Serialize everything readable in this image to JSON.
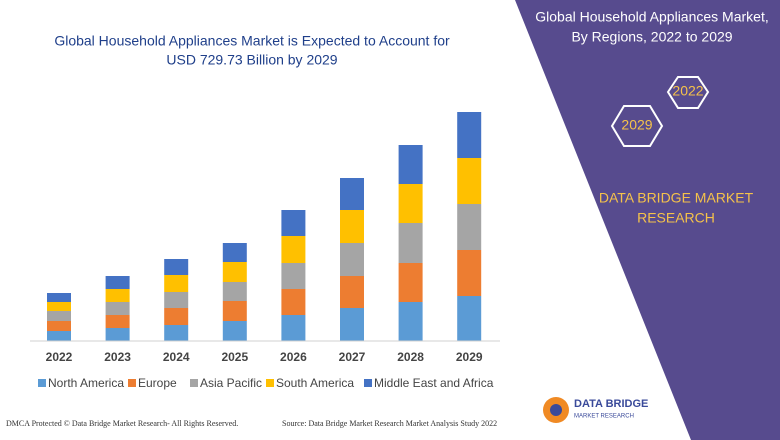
{
  "header": {
    "title_lines": [
      "Global Household Appliances Market is Expected to Account for",
      "USD 729.73 Billion by 2029"
    ]
  },
  "panel": {
    "title_lines": [
      "Global Household Appliances Market,",
      "By Regions, 2022 to 2029"
    ],
    "hex_years": [
      "2022",
      "2029"
    ],
    "brand_lines": [
      "DATA BRIDGE MARKET",
      "RESEARCH"
    ]
  },
  "chart_data": {
    "type": "stacked_bar",
    "categories": [
      "2022",
      "2023",
      "2024",
      "2025",
      "2026",
      "2027",
      "2028",
      "2029"
    ],
    "series": [
      {
        "name": "North America",
        "color": "#5b9bd5",
        "values": [
          10,
          13,
          16,
          20,
          26,
          33,
          39,
          45
        ]
      },
      {
        "name": "Europe",
        "color": "#ed7d31",
        "values": [
          10,
          13,
          17,
          20,
          26,
          32,
          39,
          46
        ]
      },
      {
        "name": "Asia Pacific",
        "color": "#a5a5a5",
        "values": [
          10,
          13,
          16,
          19,
          26,
          33,
          40,
          46
        ]
      },
      {
        "name": "South America",
        "color": "#ffc000",
        "values": [
          9,
          13,
          17,
          20,
          27,
          33,
          39,
          46
        ]
      },
      {
        "name": "Middle East and Africa",
        "color": "#4472c4",
        "values": [
          9,
          13,
          16,
          19,
          26,
          32,
          39,
          46
        ]
      }
    ],
    "ylim": [
      0,
      229
    ]
  },
  "footer": {
    "left": "DMCA Protected © Data Bridge Market Research- All Rights Reserved.",
    "right": "Source: Data Bridge Market Research Market Analysis Study 2022",
    "logo_lines": [
      "DATA BRIDGE",
      "MARKET RESEARCH"
    ]
  }
}
